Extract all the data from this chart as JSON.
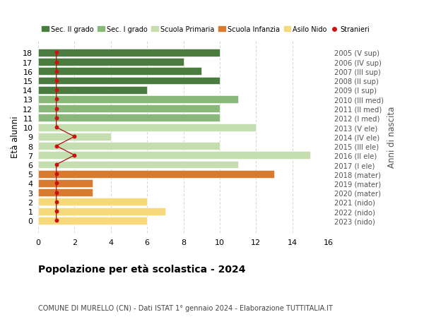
{
  "ages": [
    18,
    17,
    16,
    15,
    14,
    13,
    12,
    11,
    10,
    9,
    8,
    7,
    6,
    5,
    4,
    3,
    2,
    1,
    0
  ],
  "right_labels": [
    "2005 (V sup)",
    "2006 (IV sup)",
    "2007 (III sup)",
    "2008 (II sup)",
    "2009 (I sup)",
    "2010 (III med)",
    "2011 (II med)",
    "2012 (I med)",
    "2013 (V ele)",
    "2014 (IV ele)",
    "2015 (III ele)",
    "2016 (II ele)",
    "2017 (I ele)",
    "2018 (mater)",
    "2019 (mater)",
    "2020 (mater)",
    "2021 (nido)",
    "2022 (nido)",
    "2023 (nido)"
  ],
  "bar_values": [
    10,
    8,
    9,
    10,
    6,
    11,
    10,
    10,
    12,
    4,
    10,
    15,
    11,
    13,
    3,
    3,
    6,
    7,
    6
  ],
  "bar_colors": [
    "#4a7c3f",
    "#4a7c3f",
    "#4a7c3f",
    "#4a7c3f",
    "#4a7c3f",
    "#8ab87a",
    "#8ab87a",
    "#8ab87a",
    "#c5deb0",
    "#c5deb0",
    "#c5deb0",
    "#c5deb0",
    "#c5deb0",
    "#d97b2e",
    "#d97b2e",
    "#d97b2e",
    "#f5d97a",
    "#f5d97a",
    "#f5d97a"
  ],
  "stranieri_x": [
    1,
    1,
    1,
    1,
    1,
    1,
    1,
    1,
    1,
    2,
    1,
    2,
    1,
    1,
    1,
    1,
    1,
    1,
    1
  ],
  "title": "Popolazione per età scolastica - 2024",
  "subtitle": "COMUNE DI MURELLO (CN) - Dati ISTAT 1° gennaio 2024 - Elaborazione TUTTITALIA.IT",
  "ylabel": "Età alunni",
  "right_ylabel": "Anni di nascita",
  "xlim": [
    0,
    16
  ],
  "xticks": [
    0,
    2,
    4,
    6,
    8,
    10,
    12,
    14,
    16
  ],
  "legend_labels": [
    "Sec. II grado",
    "Sec. I grado",
    "Scuola Primaria",
    "Scuola Infanzia",
    "Asilo Nido",
    "Stranieri"
  ],
  "legend_colors": [
    "#4a7c3f",
    "#8ab87a",
    "#c5deb0",
    "#d97b2e",
    "#f5d97a",
    "#cc1111"
  ],
  "background_color": "#ffffff",
  "grid_color": "#cccccc"
}
